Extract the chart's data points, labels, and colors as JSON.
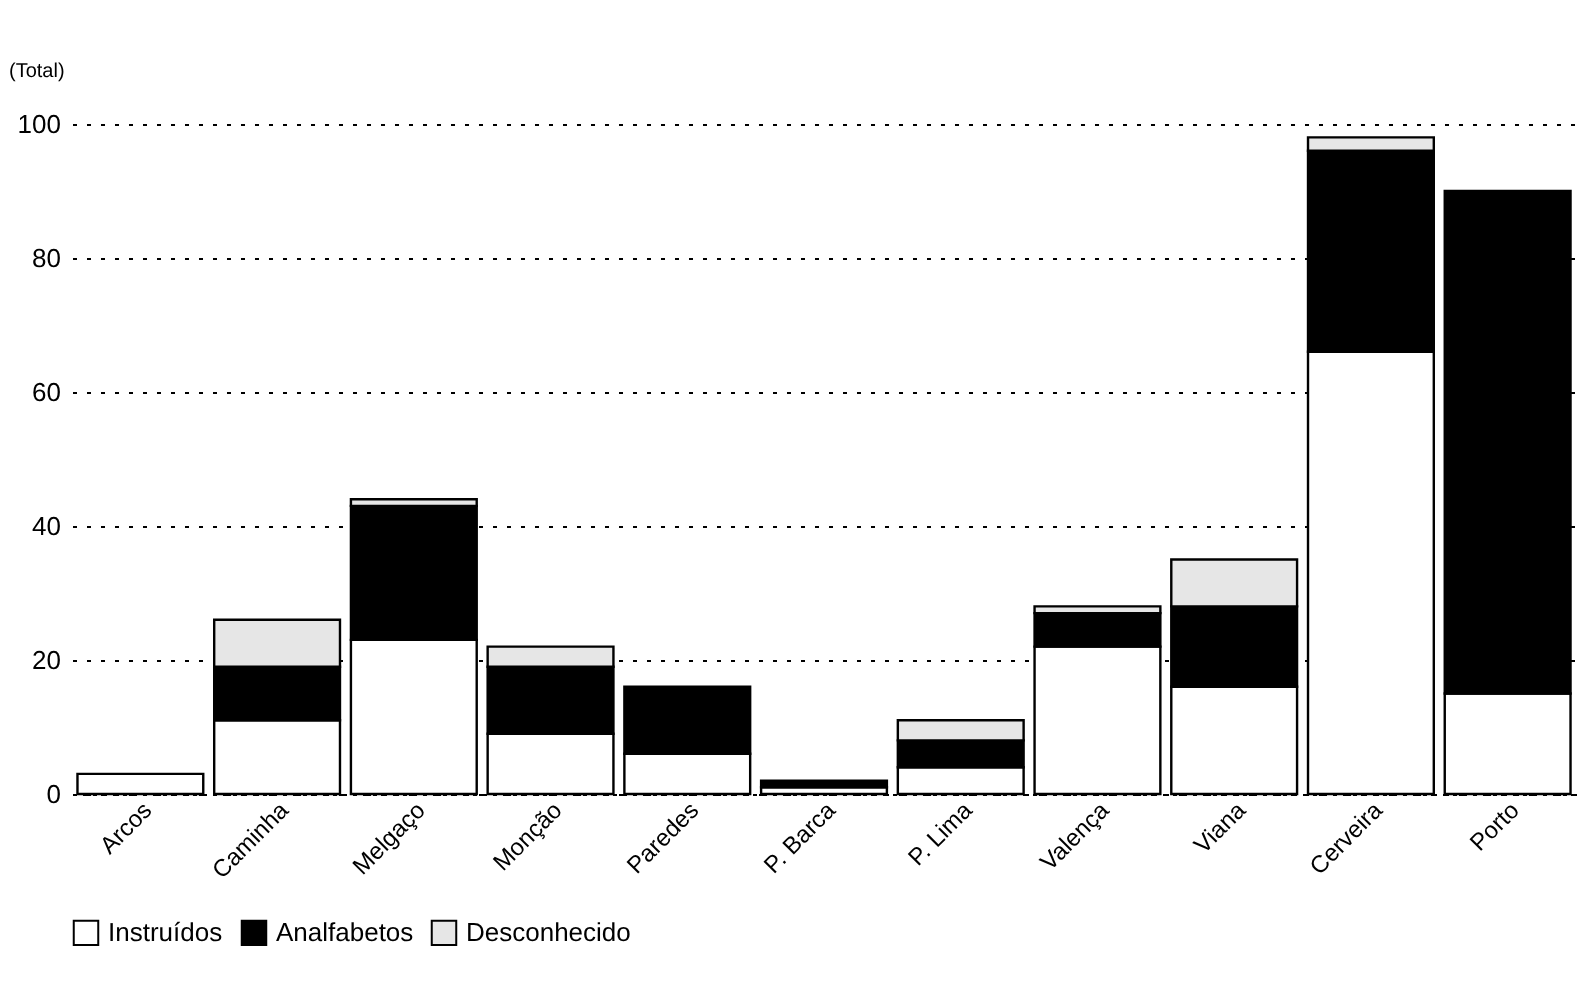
{
  "chart_data": {
    "type": "bar",
    "ylabel": "(Total)",
    "stacked": true,
    "categories": [
      "Arcos",
      "Caminha",
      "Melgaço",
      "Monção",
      "Paredes",
      "P. Barca",
      "P. Lima",
      "Valença",
      "Viana",
      "Cerveira",
      "Porto"
    ],
    "series": [
      {
        "name": "Instruídos",
        "color": "#ffffff",
        "values": [
          3,
          11,
          23,
          9,
          6,
          1,
          4,
          22,
          16,
          66,
          15
        ]
      },
      {
        "name": "Analfabetos",
        "color": "#000000",
        "values": [
          0,
          8,
          20,
          10,
          10,
          1,
          4,
          5,
          12,
          30,
          75
        ]
      },
      {
        "name": "Desconhecido",
        "color": "#e6e6e6",
        "values": [
          0,
          7,
          1,
          3,
          0,
          0,
          3,
          1,
          7,
          2,
          0
        ]
      }
    ],
    "ylim": [
      0,
      100
    ],
    "yticks": [
      0,
      20,
      40,
      60,
      80,
      100
    ],
    "grid": "y",
    "legend": "bottom"
  }
}
